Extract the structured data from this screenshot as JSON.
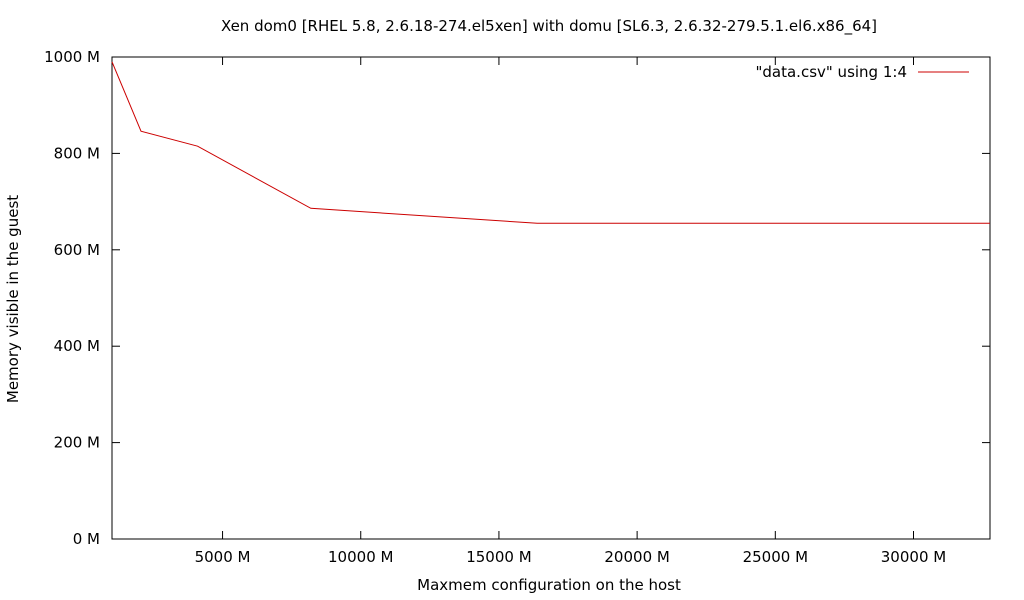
{
  "chart_data": {
    "type": "line",
    "title": "Xen dom0 [RHEL 5.8, 2.6.18-274.el5xen] with domu [SL6.3, 2.6.32-279.5.1.el6.x86_64]",
    "xlabel": "Maxmem configuration on the host",
    "ylabel": "Memory visible in the guest",
    "xlim": [
      1000,
      32768
    ],
    "ylim": [
      0,
      1000
    ],
    "x_ticks": [
      5000,
      10000,
      15000,
      20000,
      25000,
      30000
    ],
    "x_tick_labels": [
      "5000 M",
      "10000 M",
      "15000 M",
      "20000 M",
      "25000 M",
      "30000 M"
    ],
    "y_ticks": [
      0,
      200,
      400,
      600,
      800,
      1000
    ],
    "y_tick_labels": [
      "0 M",
      "200 M",
      "400 M",
      "600 M",
      "800 M",
      "1000 M"
    ],
    "grid": false,
    "legend_position": "top-right",
    "series": [
      {
        "name": "\"data.csv\" using 1:4",
        "color": "#cc0000",
        "x": [
          1000,
          2048,
          4096,
          8192,
          16384,
          32768
        ],
        "y": [
          990,
          846,
          815,
          686,
          655,
          655
        ]
      }
    ]
  }
}
